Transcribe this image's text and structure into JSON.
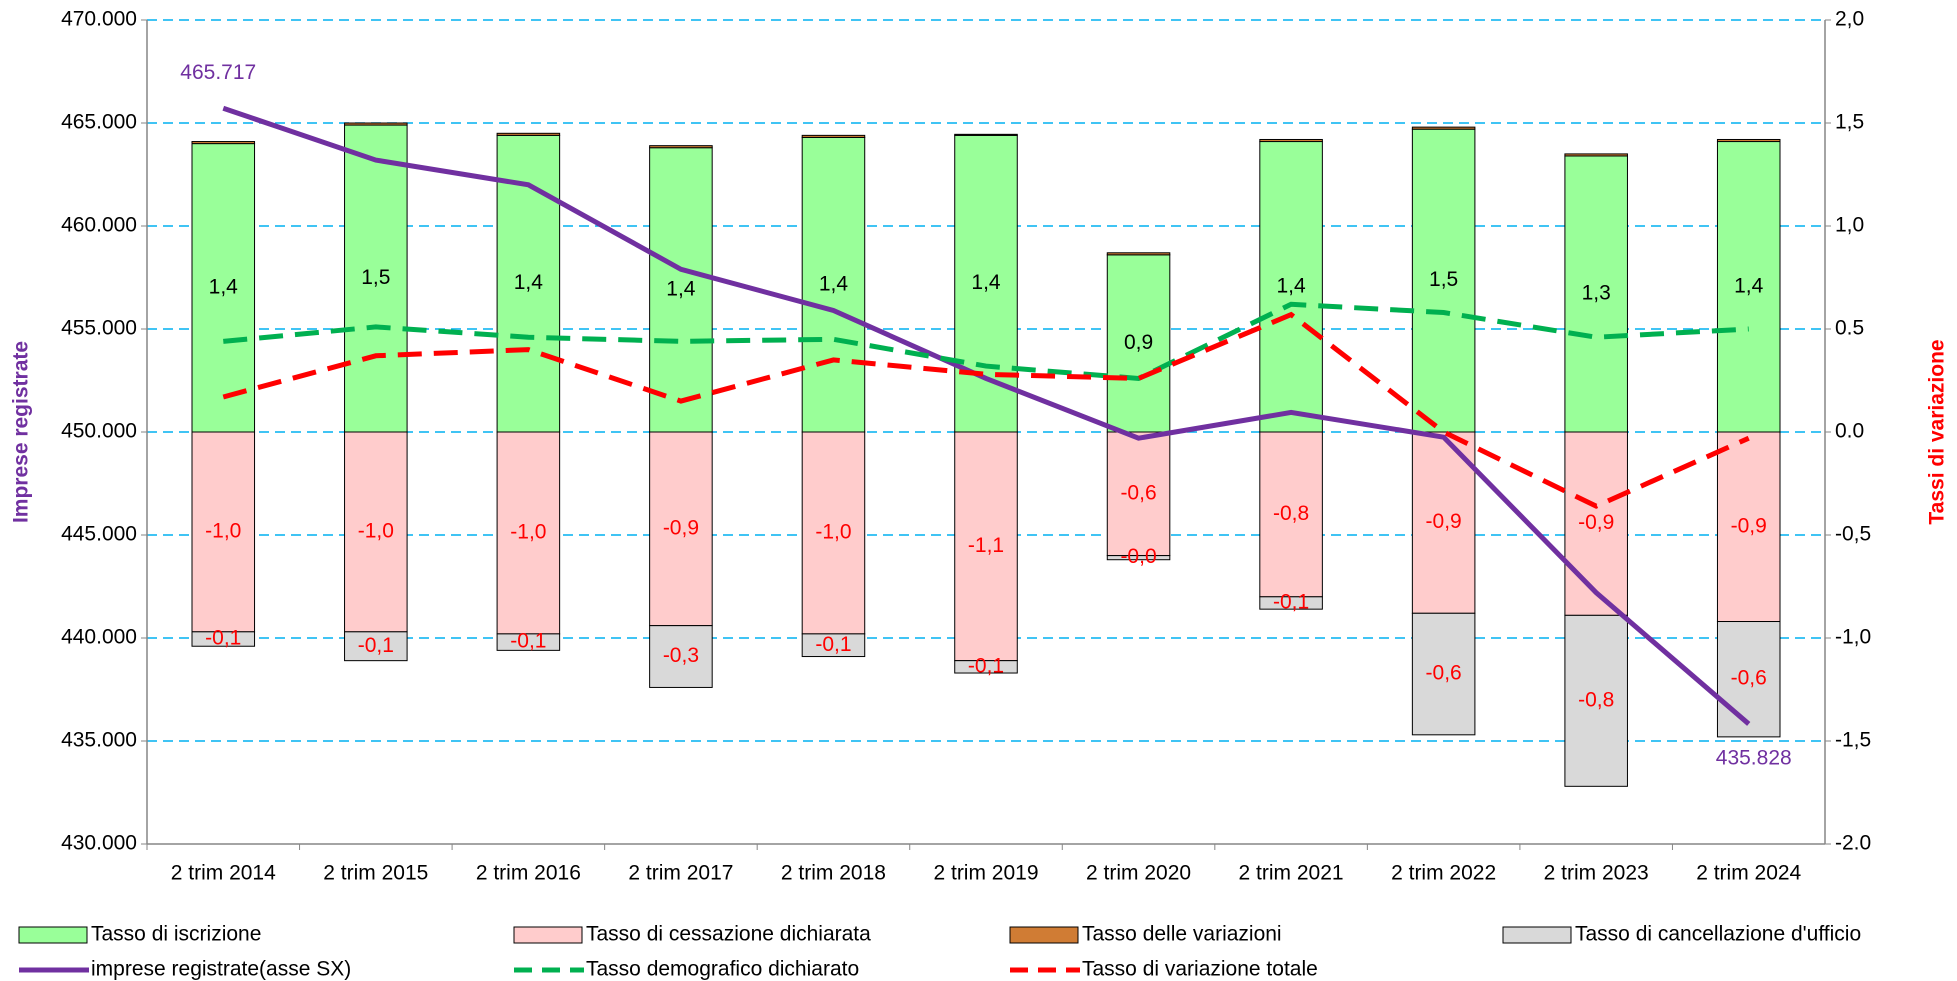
{
  "chart_data": {
    "type": "bar",
    "ylabel": "Imprese registrate",
    "y2label": "Tassi di variazione",
    "categories": [
      "2 trim 2014",
      "2 trim 2015",
      "2 trim 2016",
      "2 trim 2017",
      "2 trim 2018",
      "2 trim 2019",
      "2 trim 2020",
      "2 trim 2021",
      "2 trim 2022",
      "2 trim 2023",
      "2 trim 2024"
    ],
    "ylim": [
      430000,
      470000
    ],
    "yticks": [
      {
        "value": 430000,
        "label": "430.000"
      },
      {
        "value": 435000,
        "label": "435.000"
      },
      {
        "value": 440000,
        "label": "440.000"
      },
      {
        "value": 445000,
        "label": "445.000"
      },
      {
        "value": 450000,
        "label": "450.000"
      },
      {
        "value": 455000,
        "label": "455.000"
      },
      {
        "value": 460000,
        "label": "460.000"
      },
      {
        "value": 465000,
        "label": "465.000"
      },
      {
        "value": 470000,
        "label": "470.000"
      }
    ],
    "y2lim": [
      -2,
      2
    ],
    "y2ticks": [
      {
        "value": -2,
        "label": "-2.0"
      },
      {
        "value": -1.5,
        "label": "-1,5"
      },
      {
        "value": -1,
        "label": "-1,0"
      },
      {
        "value": -0.5,
        "label": "-0,5"
      },
      {
        "value": 0,
        "label": "0.0"
      },
      {
        "value": 0.5,
        "label": "0.5"
      },
      {
        "value": 1,
        "label": "1,0"
      },
      {
        "value": 1.5,
        "label": "1,5"
      },
      {
        "value": 2,
        "label": "2,0"
      }
    ],
    "grid": true,
    "legend": "bottom",
    "series": [
      {
        "name": "Tasso di iscrizione",
        "type": "bar",
        "axis": "y2",
        "color": "#99ff99",
        "values": [
          1.4,
          1.49,
          1.44,
          1.38,
          1.43,
          1.44,
          0.86,
          1.41,
          1.47,
          1.34,
          1.41
        ],
        "value_labels": [
          "1,4",
          "1,5",
          "1,4",
          "1,4",
          "1,4",
          "1,4",
          "0,9",
          "1,4",
          "1,5",
          "1,3",
          "1,4"
        ]
      },
      {
        "name": "Tasso di cessazione dichiarata",
        "type": "bar",
        "axis": "y2",
        "color": "#ffcccc",
        "values": [
          -0.97,
          -0.97,
          -0.98,
          -0.94,
          -0.98,
          -1.11,
          -0.6,
          -0.8,
          -0.88,
          -0.89,
          -0.92
        ],
        "value_labels": [
          "-1,0",
          "-1,0",
          "-1,0",
          "-0,9",
          "-1,0",
          "-1,1",
          "-0,6",
          "-0,8",
          "-0,9",
          "-0,9",
          "-0,9"
        ]
      },
      {
        "name": "Tasso delle variazioni",
        "type": "bar",
        "axis": "y2",
        "color": "#d07c34",
        "values": [
          0.01,
          0.01,
          0.01,
          0.01,
          0.01,
          0.005,
          0.01,
          0.01,
          0.01,
          0.01,
          0.01
        ]
      },
      {
        "name": "Tasso di cancellazione d'ufficio",
        "type": "bar",
        "axis": "y2",
        "color": "#d9d9d9",
        "values": [
          -0.07,
          -0.14,
          -0.08,
          -0.3,
          -0.11,
          -0.06,
          -0.02,
          -0.06,
          -0.59,
          -0.83,
          -0.56
        ],
        "value_labels": [
          "-0,1",
          "-0,1",
          "-0,1",
          "-0,3",
          "-0,1",
          "-0,1",
          "-0,0",
          "-0,1",
          "-0,6",
          "-0,8",
          "-0,6"
        ]
      },
      {
        "name": "imprese registrate(asse SX)",
        "type": "line",
        "axis": "y",
        "color": "#7030a0",
        "dashed": false,
        "values": [
          465717,
          463200,
          462000,
          457900,
          455900,
          452600,
          449700,
          450950,
          449750,
          442200,
          435828
        ],
        "value_labels": [
          "465.717",
          null,
          null,
          null,
          null,
          null,
          null,
          null,
          null,
          null,
          "435.828"
        ]
      },
      {
        "name": "Tasso demografico dichiarato",
        "type": "line",
        "axis": "y2",
        "color": "#00b050",
        "dashed": true,
        "values": [
          0.44,
          0.51,
          0.46,
          0.44,
          0.45,
          0.32,
          0.26,
          0.62,
          0.58,
          0.46,
          0.5
        ]
      },
      {
        "name": "Tasso di variazione totale",
        "type": "line",
        "axis": "y2",
        "color": "#ff0000",
        "dashed": true,
        "values": [
          0.17,
          0.37,
          0.4,
          0.15,
          0.35,
          0.28,
          0.26,
          0.57,
          0.0,
          -0.36,
          -0.03
        ]
      }
    ]
  }
}
